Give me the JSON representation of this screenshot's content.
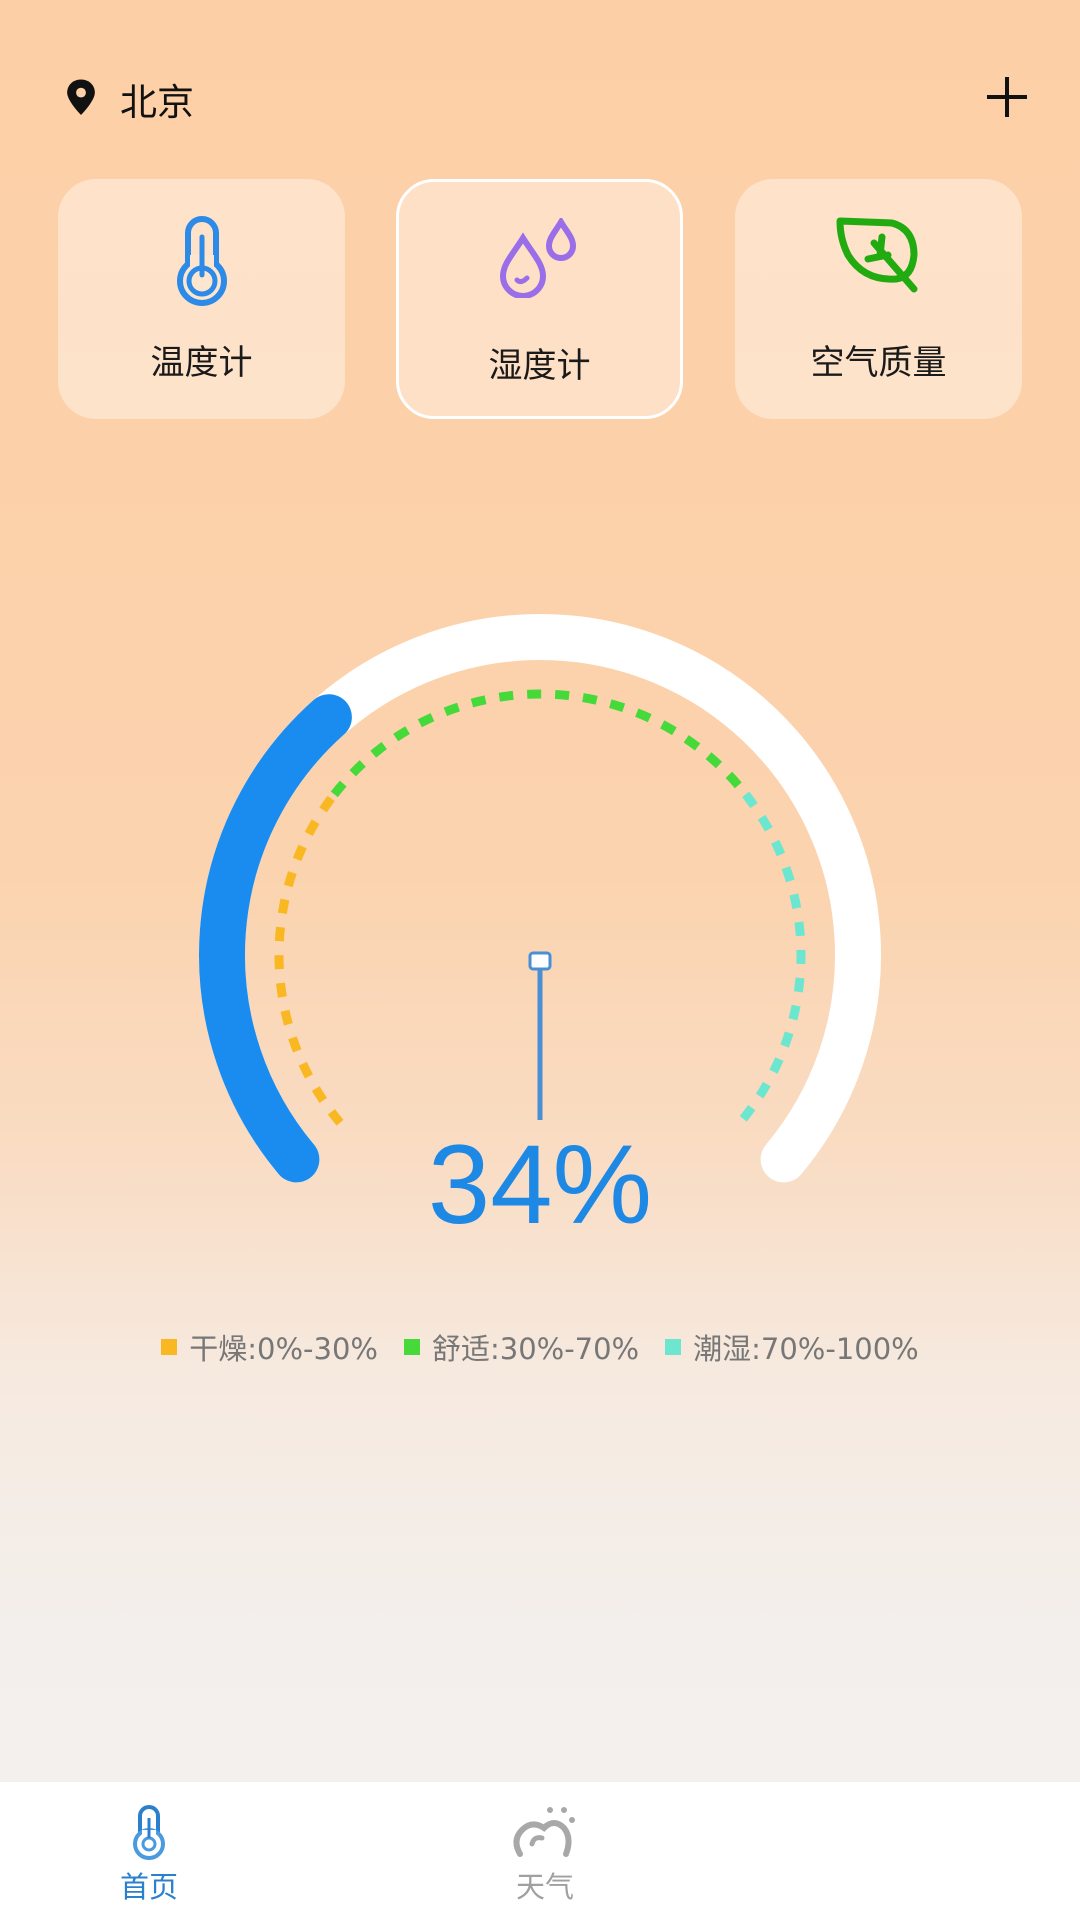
{
  "header": {
    "city": "北京",
    "location_icon": "map-pin-icon",
    "add_icon": "plus-icon"
  },
  "cards": [
    {
      "label": "温度计",
      "icon": "thermometer-icon",
      "color": "#2d8ae6",
      "active": false
    },
    {
      "label": "湿度计",
      "icon": "water-drops-icon",
      "color": "#9a6ee8",
      "active": true
    },
    {
      "label": "空气质量",
      "icon": "leaf-icon",
      "color": "#22aa11",
      "active": false
    }
  ],
  "gauge": {
    "value": 34,
    "display": "34%",
    "min": 0,
    "max": 100,
    "track_color": "#ffffff",
    "value_color": "#1a8cf0",
    "zones": [
      {
        "label": "干燥:0%-30%",
        "from": 0,
        "to": 30,
        "color": "#f9b822"
      },
      {
        "label": "舒适:30%-70%",
        "from": 30,
        "to": 70,
        "color": "#45d93a"
      },
      {
        "label": "潮湿:70%-100%",
        "from": 70,
        "to": 100,
        "color": "#6de6d0"
      }
    ]
  },
  "tabbar": {
    "items": [
      {
        "label": "首页",
        "icon": "thermometer-icon",
        "active": true,
        "color": "#2a80cc"
      },
      {
        "label": "天气",
        "icon": "cloud-sun-icon",
        "active": false,
        "color": "#a0a0a0"
      }
    ]
  }
}
